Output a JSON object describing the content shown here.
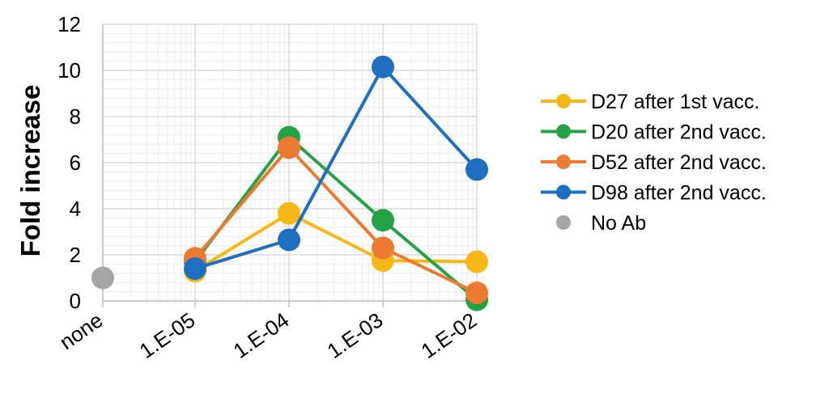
{
  "chart_data": {
    "type": "line",
    "title": "",
    "xlabel": "",
    "ylabel": "Fold increase",
    "ylim": [
      0,
      12
    ],
    "y_ticks": [
      0,
      2,
      4,
      6,
      8,
      10,
      12
    ],
    "x_scale": "log",
    "categories": [
      "none",
      "1.E-05",
      "1.E-04",
      "1.E-03",
      "1.E-02"
    ],
    "grid": true,
    "legend_position": "right",
    "series": [
      {
        "name": "D27 after 1st vacc.",
        "color": "#F7B717",
        "values": [
          null,
          1.3,
          3.8,
          1.75,
          1.7
        ]
      },
      {
        "name": "D20 after 2nd vacc.",
        "color": "#23A346",
        "values": [
          null,
          1.7,
          7.1,
          3.5,
          0.05
        ]
      },
      {
        "name": "D52 after 2nd vacc.",
        "color": "#EC7A31",
        "values": [
          null,
          1.85,
          6.65,
          2.3,
          0.35
        ]
      },
      {
        "name": "D98 after 2nd vacc.",
        "color": "#1E6FBF",
        "values": [
          null,
          1.4,
          2.65,
          10.15,
          5.7
        ]
      },
      {
        "name": "No Ab",
        "color": "#A5A5A5",
        "marker_only": true,
        "values": [
          1.0,
          null,
          null,
          null,
          null
        ]
      }
    ]
  }
}
